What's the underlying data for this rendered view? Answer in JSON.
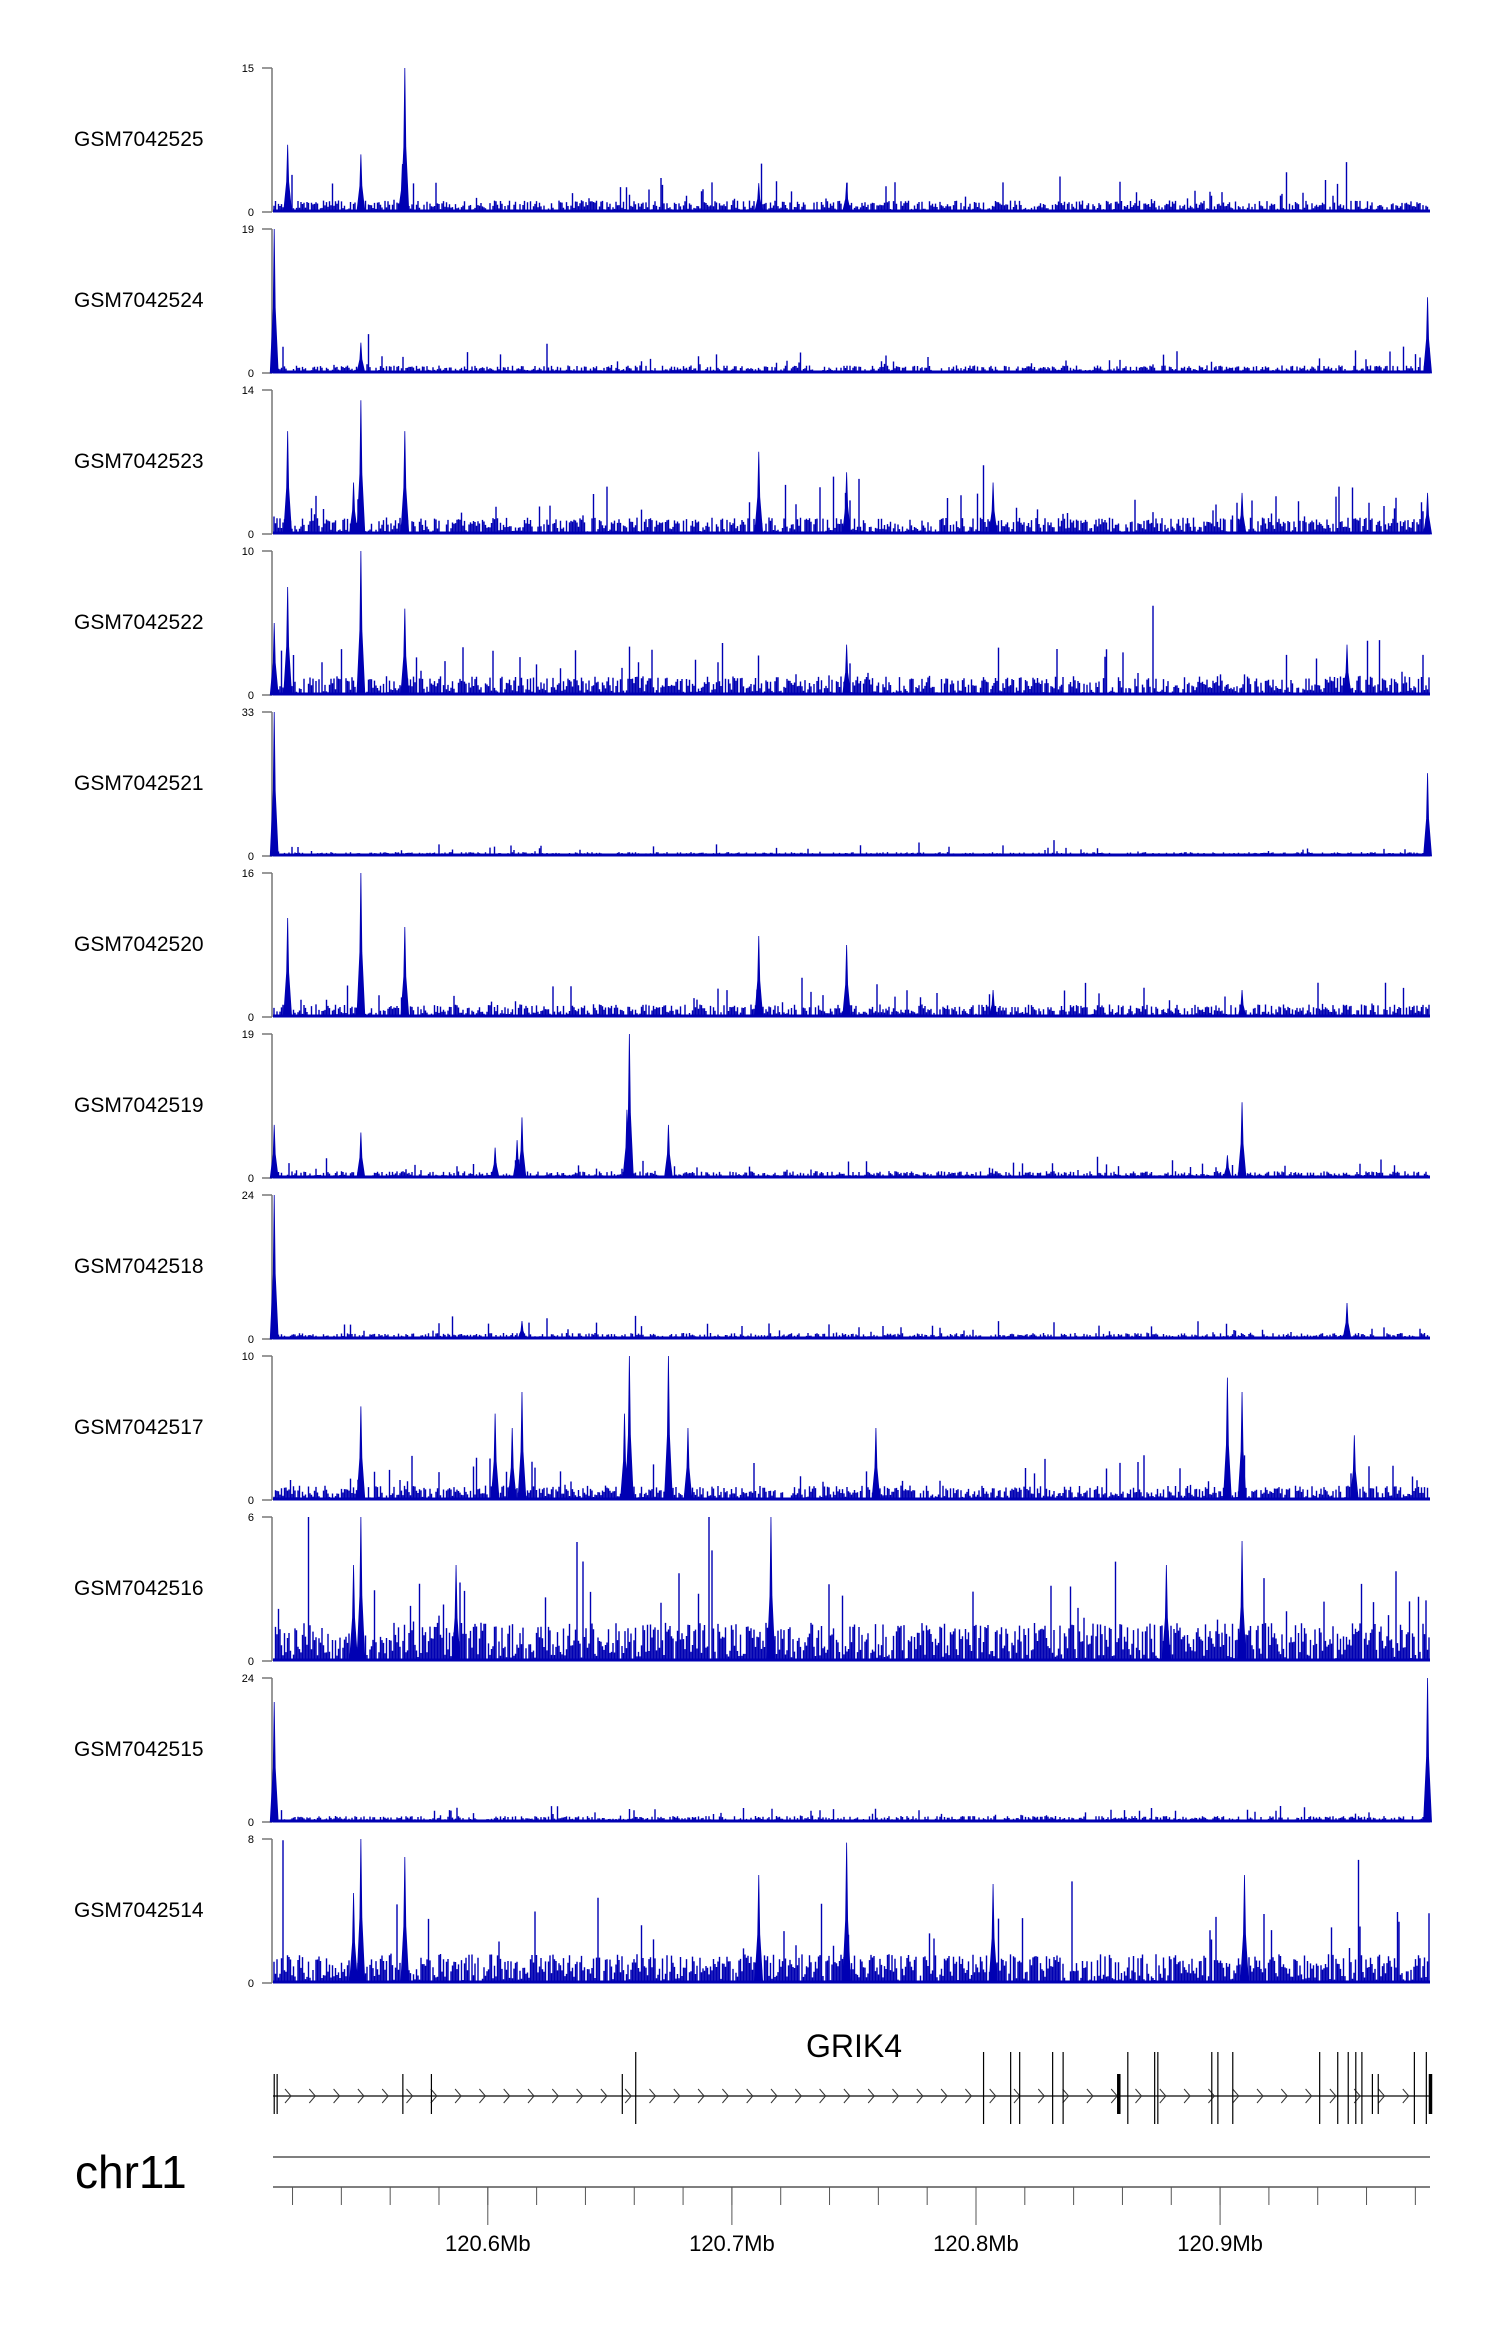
{
  "chart_data": {
    "type": "bar",
    "title": "",
    "chromosome": "chr11",
    "gene": "GRIK4",
    "xlim_mb": [
      120.512,
      120.986
    ],
    "x_ticks": [
      {
        "value": 120.6,
        "label": "120.6Mb"
      },
      {
        "value": 120.7,
        "label": "120.7Mb"
      },
      {
        "value": 120.8,
        "label": "120.8Mb"
      },
      {
        "value": 120.9,
        "label": "120.9Mb"
      }
    ],
    "minor_tick_step_mb": 0.02,
    "color": "#0000b3",
    "tracks": [
      {
        "name": "GSM7042525",
        "ymax": 15,
        "noise": 1.2,
        "peaks": [
          [
            120.518,
            7
          ],
          [
            120.548,
            6
          ],
          [
            120.566,
            15
          ],
          [
            120.565,
            5
          ],
          [
            120.711,
            3
          ],
          [
            120.747,
            3
          ]
        ]
      },
      {
        "name": "GSM7042524",
        "ymax": 19,
        "noise": 1.0,
        "peaks": [
          [
            120.5125,
            19
          ],
          [
            120.985,
            10
          ],
          [
            120.548,
            4
          ]
        ]
      },
      {
        "name": "GSM7042523",
        "ymax": 14,
        "noise": 1.6,
        "peaks": [
          [
            120.518,
            10
          ],
          [
            120.548,
            13
          ],
          [
            120.566,
            10
          ],
          [
            120.711,
            8
          ],
          [
            120.747,
            6
          ],
          [
            120.807,
            5
          ],
          [
            120.909,
            4
          ],
          [
            120.985,
            4
          ],
          [
            120.545,
            5
          ]
        ]
      },
      {
        "name": "GSM7042522",
        "ymax": 10,
        "noise": 1.3,
        "peaks": [
          [
            120.518,
            7.5
          ],
          [
            120.548,
            10
          ],
          [
            120.566,
            6
          ],
          [
            120.747,
            3.5
          ],
          [
            120.952,
            3.5
          ],
          [
            120.5125,
            5
          ]
        ]
      },
      {
        "name": "GSM7042521",
        "ymax": 33,
        "noise": 0.9,
        "peaks": [
          [
            120.5125,
            33
          ],
          [
            120.985,
            19
          ]
        ]
      },
      {
        "name": "GSM7042520",
        "ymax": 16,
        "noise": 1.4,
        "peaks": [
          [
            120.518,
            11
          ],
          [
            120.548,
            16
          ],
          [
            120.566,
            10
          ],
          [
            120.711,
            9
          ],
          [
            120.747,
            8
          ],
          [
            120.807,
            3
          ],
          [
            120.909,
            3
          ]
        ]
      },
      {
        "name": "GSM7042519",
        "ymax": 19,
        "noise": 0.9,
        "peaks": [
          [
            120.5125,
            7
          ],
          [
            120.548,
            6
          ],
          [
            120.603,
            4
          ],
          [
            120.614,
            8
          ],
          [
            120.612,
            5
          ],
          [
            120.658,
            19
          ],
          [
            120.657,
            9
          ],
          [
            120.674,
            7
          ],
          [
            120.909,
            10
          ],
          [
            120.903,
            3
          ]
        ]
      },
      {
        "name": "GSM7042518",
        "ymax": 24,
        "noise": 1.0,
        "peaks": [
          [
            120.5125,
            24
          ],
          [
            120.952,
            6
          ],
          [
            120.614,
            3
          ]
        ]
      },
      {
        "name": "GSM7042517",
        "ymax": 10,
        "noise": 1.0,
        "peaks": [
          [
            120.548,
            6.5
          ],
          [
            120.603,
            6
          ],
          [
            120.614,
            7.5
          ],
          [
            120.61,
            5
          ],
          [
            120.658,
            10
          ],
          [
            120.656,
            6
          ],
          [
            120.674,
            10
          ],
          [
            120.682,
            5
          ],
          [
            120.759,
            5
          ],
          [
            120.903,
            8.5
          ],
          [
            120.909,
            7.5
          ],
          [
            120.955,
            4.5
          ]
        ]
      },
      {
        "name": "GSM7042516",
        "ymax": 6,
        "noise": 1.6,
        "peaks": [
          [
            120.548,
            6
          ],
          [
            120.716,
            6
          ],
          [
            120.909,
            5
          ],
          [
            120.545,
            4
          ],
          [
            120.587,
            4
          ],
          [
            120.878,
            4
          ]
        ]
      },
      {
        "name": "GSM7042515",
        "ymax": 24,
        "noise": 1.0,
        "peaks": [
          [
            120.5125,
            20
          ],
          [
            120.985,
            24
          ]
        ]
      },
      {
        "name": "GSM7042514",
        "ymax": 8,
        "noise": 1.6,
        "peaks": [
          [
            120.548,
            8
          ],
          [
            120.566,
            7
          ],
          [
            120.711,
            6
          ],
          [
            120.747,
            7.8
          ],
          [
            120.807,
            5.5
          ],
          [
            120.91,
            6
          ],
          [
            120.545,
            5
          ]
        ]
      }
    ],
    "exons_mb": [
      120.5125,
      120.5137,
      120.5652,
      120.5769,
      120.6551,
      120.6606,
      120.8031,
      120.8142,
      120.8179,
      120.8314,
      120.8357,
      120.8585,
      120.8622,
      120.8732,
      120.8745,
      120.8966,
      120.8991,
      120.9052,
      120.9408,
      120.9482,
      120.9525,
      120.9556,
      120.9581,
      120.9624,
      120.9648,
      120.9796,
      120.9845,
      120.9862
    ],
    "tall_exons_mb": [
      120.6606,
      120.8031,
      120.8142,
      120.8179,
      120.8314,
      120.8357,
      120.8622,
      120.8732,
      120.8745,
      120.8966,
      120.8991,
      120.9052,
      120.9408,
      120.9482,
      120.9525,
      120.9556,
      120.9581,
      120.9796,
      120.9845
    ],
    "thick_exons_mb": [
      120.8585,
      120.9862
    ]
  }
}
